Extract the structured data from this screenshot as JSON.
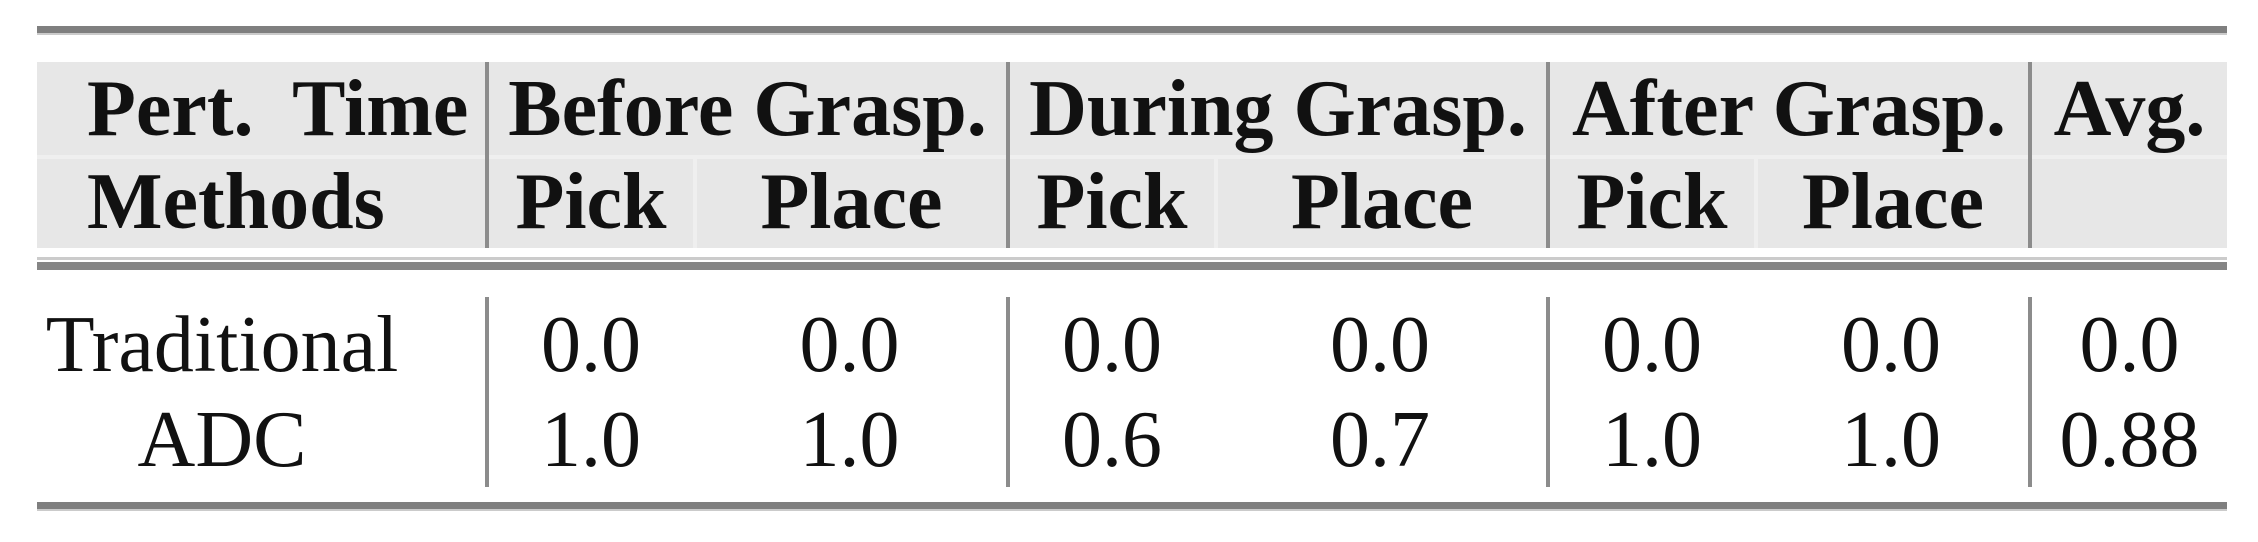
{
  "table": {
    "corner": {
      "row1": "Pert.  Time",
      "row2": "Methods"
    },
    "groups": [
      {
        "label": "Before Grasp.",
        "sub": [
          "Pick",
          "Place"
        ]
      },
      {
        "label": "During Grasp.",
        "sub": [
          "Pick",
          "Place"
        ]
      },
      {
        "label": "After Grasp.",
        "sub": [
          "Pick",
          "Place"
        ]
      }
    ],
    "avg_label": "Avg.",
    "rows": [
      {
        "method": "Traditional",
        "values": [
          "0.0",
          "0.0",
          "0.0",
          "0.0",
          "0.0",
          "0.0"
        ],
        "avg": "0.0"
      },
      {
        "method": "ADC",
        "values": [
          "1.0",
          "1.0",
          "0.6",
          "0.7",
          "1.0",
          "1.0"
        ],
        "avg": "0.88"
      }
    ]
  },
  "chart_data": {
    "type": "table",
    "columns": [
      "Pert. Time / Methods",
      "Before Grasp. Pick",
      "Before Grasp. Place",
      "During Grasp. Pick",
      "During Grasp. Place",
      "After Grasp. Pick",
      "After Grasp. Place",
      "Avg."
    ],
    "rows": [
      [
        "Traditional",
        0.0,
        0.0,
        0.0,
        0.0,
        0.0,
        0.0,
        0.0
      ],
      [
        "ADC",
        1.0,
        1.0,
        0.6,
        0.7,
        1.0,
        1.0,
        0.88
      ]
    ]
  },
  "colors": {
    "background": "#ffffff",
    "header_bg": "#e7e7e7",
    "rule_dark": "#7f7f7f",
    "rule_light": "#cbcbcb",
    "separator": "#8c8c8c",
    "seam": "#efefef",
    "text": "#111111"
  }
}
